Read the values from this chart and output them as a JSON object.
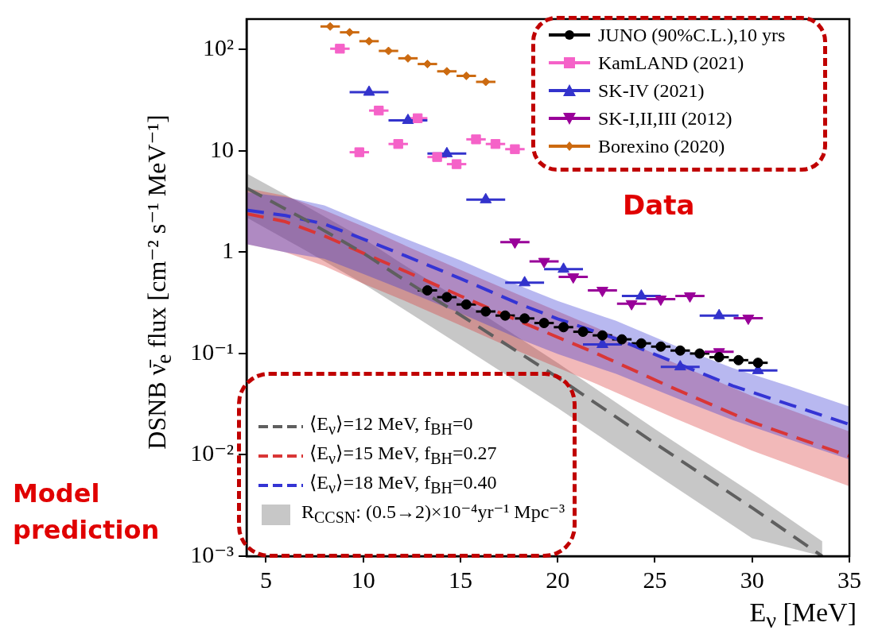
{
  "chart_data": {
    "type": "scatter",
    "xlabel": "E$_{ν}$ [MeV]",
    "ylabel": "DSNB ν̄$_{e}$ flux [cm⁻² s⁻¹ MeV⁻¹]",
    "xlim": [
      4,
      35
    ],
    "xticks": [
      5,
      10,
      15,
      20,
      25,
      30,
      35
    ],
    "ylim": [
      0.001,
      200
    ],
    "yticks": [
      {
        "value": 0.001,
        "label": "10⁻³"
      },
      {
        "value": 0.01,
        "label": "10⁻²"
      },
      {
        "value": 0.1,
        "label": "10⁻¹"
      },
      1,
      10,
      {
        "value": 100,
        "label": "10²"
      }
    ],
    "log": "y",
    "legend": "top right",
    "annotations": [
      "Data",
      "Model prediction",
      "R$_{CCSN}$: (0.5→2)×10⁻⁴yr⁻¹ Mpc⁻³"
    ],
    "series": [
      {
        "type": "line",
        "name": "⟨E$_{ν}$⟩=12 MeV, f$_{BH}$=0",
        "color": "#5f5f5f",
        "marker": "none",
        "line_style": "dashed",
        "x": [
          4,
          7,
          10,
          12,
          15,
          20,
          25,
          30,
          33.6
        ],
        "values": [
          4.3,
          2.1,
          0.98,
          0.55,
          0.24,
          0.058,
          0.013,
          0.003,
          0.001
        ],
        "upper": [
          6,
          2.9,
          1.37,
          0.77,
          0.34,
          0.081,
          0.018,
          0.0042,
          0.0014
        ],
        "lower": [
          2.2,
          1.05,
          0.49,
          0.28,
          0.12,
          0.029,
          0.0065,
          0.0015,
          0.001
        ]
      },
      {
        "type": "line",
        "name": "⟨E$_{ν}$⟩=15 MeV, f$_{BH}$=0.27",
        "color": "#d93636",
        "marker": "none",
        "line_style": "dashed",
        "x": [
          4,
          6,
          8,
          10,
          12,
          15,
          18,
          22,
          26,
          30,
          35
        ],
        "values": [
          2.4,
          2.0,
          1.45,
          0.98,
          0.67,
          0.37,
          0.21,
          0.1,
          0.045,
          0.021,
          0.0097
        ],
        "upper": [
          4.3,
          3.6,
          2.6,
          1.8,
          1.2,
          0.67,
          0.38,
          0.18,
          0.081,
          0.038,
          0.017
        ],
        "lower": [
          1.2,
          1.0,
          0.73,
          0.49,
          0.34,
          0.19,
          0.105,
          0.05,
          0.023,
          0.011,
          0.0049
        ]
      },
      {
        "type": "line",
        "name": "⟨E$_{ν}$⟩=18 MeV, f$_{BH}$=0.40",
        "color": "#3434d4",
        "marker": "none",
        "line_style": "dashed",
        "x": [
          4,
          6,
          8,
          10,
          12,
          15,
          18,
          20,
          23,
          26,
          29,
          32,
          35
        ],
        "values": [
          2.6,
          2.3,
          1.9,
          1.35,
          0.95,
          0.55,
          0.31,
          0.22,
          0.14,
          0.082,
          0.048,
          0.031,
          0.02
        ],
        "upper": [
          3.9,
          3.5,
          2.9,
          2.0,
          1.4,
          0.83,
          0.47,
          0.33,
          0.21,
          0.12,
          0.072,
          0.047,
          0.03
        ],
        "lower": [
          1.2,
          1.0,
          0.86,
          0.61,
          0.43,
          0.25,
          0.14,
          0.099,
          0.063,
          0.037,
          0.022,
          0.014,
          0.009
        ]
      },
      {
        "type": "scatter",
        "name": "JUNO (90%C.L.),10 yrs",
        "color": "#000000",
        "marker": "circle",
        "x": [
          13.3,
          14.3,
          15.3,
          16.3,
          17.3,
          18.3,
          19.3,
          20.3,
          21.3,
          22.3,
          23.3,
          24.3,
          25.3,
          26.3,
          27.3,
          28.3,
          29.3,
          30.3
        ],
        "values": [
          0.42,
          0.36,
          0.305,
          0.26,
          0.237,
          0.222,
          0.2,
          0.182,
          0.164,
          0.151,
          0.138,
          0.126,
          0.117,
          0.107,
          0.1,
          0.092,
          0.086,
          0.081
        ],
        "xerrors": [
          0.5,
          0.5,
          0.5,
          0.5,
          0.5,
          0.5,
          0.5,
          0.5,
          0.5,
          0.5,
          0.5,
          0.5,
          0.5,
          0.5,
          0.5,
          0.5,
          0.5,
          0.5
        ]
      },
      {
        "type": "scatter",
        "name": "KamLAND (2021)",
        "color": "#f562c8",
        "marker": "square",
        "x": [
          8.8,
          9.8,
          10.8,
          11.8,
          12.8,
          13.8,
          14.8,
          15.8,
          16.8,
          17.8
        ],
        "values": [
          102,
          9.7,
          25,
          11.7,
          21,
          8.7,
          7.4,
          13,
          11.7,
          10.4
        ],
        "xerrors": [
          0.5,
          0.5,
          0.5,
          0.5,
          0.5,
          0.5,
          0.5,
          0.5,
          0.5,
          0.5
        ]
      },
      {
        "type": "scatter",
        "name": "SK-IV (2021)",
        "color": "#3333cc",
        "marker": "triangle",
        "x": [
          10.3,
          12.3,
          14.3,
          16.3,
          18.3,
          20.3,
          22.3,
          24.3,
          26.3,
          28.3,
          30.3
        ],
        "values": [
          38,
          20,
          9.4,
          3.3,
          0.5,
          0.68,
          0.123,
          0.37,
          0.074,
          0.237,
          0.068
        ],
        "xerrors": [
          1,
          1,
          1,
          1,
          1,
          1,
          1,
          1,
          1,
          1,
          1
        ]
      },
      {
        "type": "scatter",
        "name": "SK-I,II,III (2012)",
        "color": "#990099",
        "marker": "triangle-down",
        "x": [
          17.8,
          19.3,
          20.8,
          22.3,
          23.8,
          25.3,
          26.8,
          28.3,
          29.8
        ],
        "values": [
          1.26,
          0.81,
          0.57,
          0.42,
          0.31,
          0.344,
          0.37,
          0.104,
          0.223
        ],
        "xerrors": [
          0.75,
          0.75,
          0.75,
          0.75,
          0.75,
          0.75,
          0.75,
          0.75,
          0.75
        ]
      },
      {
        "type": "scatter",
        "name": "Borexino (2020)",
        "color": "#cc6a10",
        "marker": "diamond",
        "x": [
          8.3,
          9.3,
          10.3,
          11.3,
          12.3,
          13.3,
          14.3,
          15.3,
          16.3
        ],
        "values": [
          169,
          148,
          121,
          97,
          82,
          72,
          61,
          55,
          48
        ],
        "xerrors": [
          0.5,
          0.5,
          0.5,
          0.5,
          0.5,
          0.5,
          0.5,
          0.5,
          0.5
        ]
      }
    ]
  }
}
